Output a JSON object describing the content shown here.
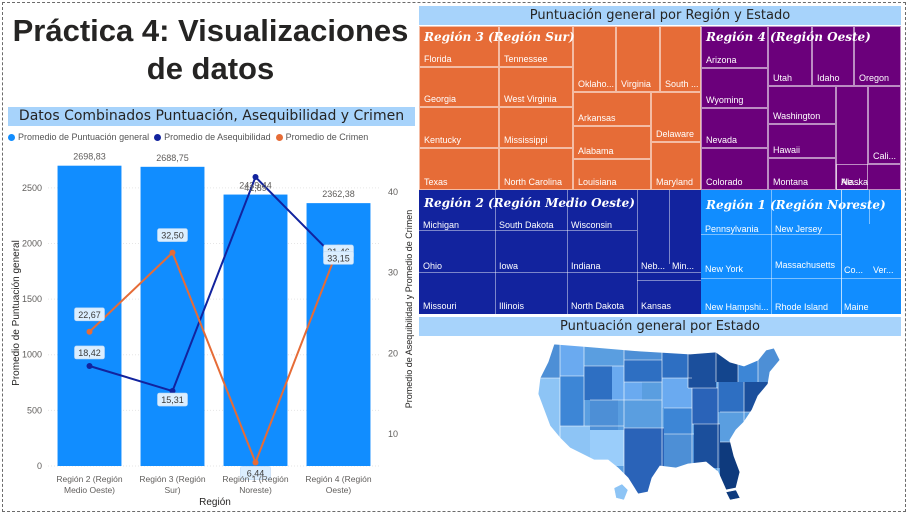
{
  "page": {
    "title_line1": "Práctica 4: Visualizaciones",
    "title_line2": "de datos"
  },
  "combo_chart": {
    "header": "Datos Combinados Puntuación, Asequibilidad y Crimen",
    "legend": [
      {
        "label": "Promedio de Puntuación general",
        "color": "#118dff"
      },
      {
        "label": "Promedio de Asequibilidad",
        "color": "#12239e"
      },
      {
        "label": "Promedio de Crimen",
        "color": "#e66c37"
      }
    ],
    "xlabel": "Región",
    "ylabel_left": "Promedio de Puntuación general",
    "ylabel_right": "Promedio de Asequibilidad y Promedio de Crimen"
  },
  "treemap": {
    "header": "Puntuación general por Región y Estado"
  },
  "map": {
    "header": "Puntuación general por Estado"
  },
  "chart_data": [
    {
      "type": "bar+line",
      "title": "Datos Combinados Puntuación, Asequibilidad y Crimen",
      "categories": [
        "Región 2 (Región Medio Oeste)",
        "Región 3 (Región Sur)",
        "Región 1 (Región Noreste)",
        "Región 4 (Región Oeste)"
      ],
      "category_labels": [
        [
          "Región 2 (Región",
          "Medio Oeste)"
        ],
        [
          "Región 3 (Región",
          "Sur)"
        ],
        [
          "Región 1 (Región",
          "Noreste)"
        ],
        [
          "Región 4 (Región",
          "Oeste)"
        ]
      ],
      "bar_series": {
        "name": "Promedio de Puntuación general",
        "color": "#118dff",
        "values": [
          2698.83,
          2688.75,
          2439.44,
          2362.38
        ],
        "labels": [
          "2698,83",
          "2688,75",
          "2439,44",
          "2362,38"
        ]
      },
      "line_series": [
        {
          "name": "Promedio de Asequibilidad",
          "color": "#12239e",
          "values": [
            18.42,
            15.31,
            41.89,
            31.46
          ],
          "labels": [
            "18,42",
            "15,31",
            "41,89",
            "31,46"
          ]
        },
        {
          "name": "Promedio de Crimen",
          "color": "#e66c37",
          "values": [
            22.67,
            32.5,
            6.44,
            33.15
          ],
          "labels": [
            "22,67",
            "32,50",
            "6,44",
            "33,15"
          ]
        }
      ],
      "ylim_left": [
        0,
        2750
      ],
      "yticks_left": [
        0,
        500,
        1000,
        1500,
        2000,
        2500
      ],
      "ylim_right": [
        6,
        44
      ],
      "yticks_right": [
        10,
        20,
        30,
        40
      ],
      "xlabel": "Región",
      "ylabel": "Promedio de Puntuación general",
      "ylabel_right": "Promedio de Asequibilidad y Promedio de Crimen",
      "legend_position": "top-left",
      "grid": true
    },
    {
      "type": "treemap",
      "title": "Puntuación general por Región y Estado",
      "regions": [
        {
          "name": "Región 3 (Región Sur)",
          "color": "#e66c37",
          "states": [
            "Florida",
            "Georgia",
            "Kentucky",
            "Texas",
            "Tennessee",
            "West Virginia",
            "Mississippi",
            "North Carolina",
            "Oklaho...",
            "Virginia",
            "South ...",
            "Arkansas",
            "Alabama",
            "Louisiana",
            "Delaware",
            "Maryland"
          ]
        },
        {
          "name": "Región 4 (Región Oeste)",
          "color": "#6b007b",
          "states": [
            "Arizona",
            "Wyoming",
            "Nevada",
            "Colorado",
            "Utah",
            "Idaho",
            "Oregon",
            "Washington",
            "Hawaii",
            "Montana",
            "Ne...",
            "Cali...",
            "Alaska"
          ]
        },
        {
          "name": "Región 2 (Región Medio Oeste)",
          "color": "#12239e",
          "states": [
            "Michigan",
            "Ohio",
            "Missouri",
            "South Dakota",
            "Iowa",
            "Illinois",
            "Wisconsin",
            "Indiana",
            "North Dakota",
            "Neb...",
            "Min...",
            "Kansas"
          ]
        },
        {
          "name": "Región 1 (Región Noreste)",
          "color": "#118dff",
          "states": [
            "Pennsylvania",
            "New York",
            "New Hampshi...",
            "New Jersey",
            "Massachusetts",
            "Rhode Island",
            "Co...",
            "Ver...",
            "Maine"
          ]
        }
      ]
    }
  ]
}
